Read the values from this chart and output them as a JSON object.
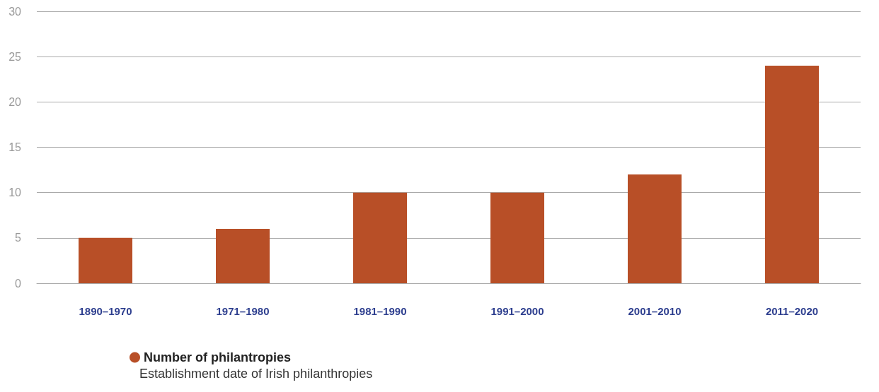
{
  "chart_data": {
    "type": "bar",
    "categories": [
      "1890–1970",
      "1971–1980",
      "1981–1990",
      "1991–2000",
      "2001–2010",
      "2011–2020"
    ],
    "series": [
      {
        "name": "Number of philantropies",
        "color": "#b84f27",
        "values": [
          5,
          6,
          10,
          10,
          12,
          24
        ]
      }
    ],
    "ylim": [
      0,
      30
    ],
    "yticks": [
      0,
      5,
      10,
      15,
      20,
      25,
      30
    ],
    "grid": "y",
    "legend": "bottom",
    "annotations": [
      "Establishment date of Irish philanthropies"
    ]
  }
}
